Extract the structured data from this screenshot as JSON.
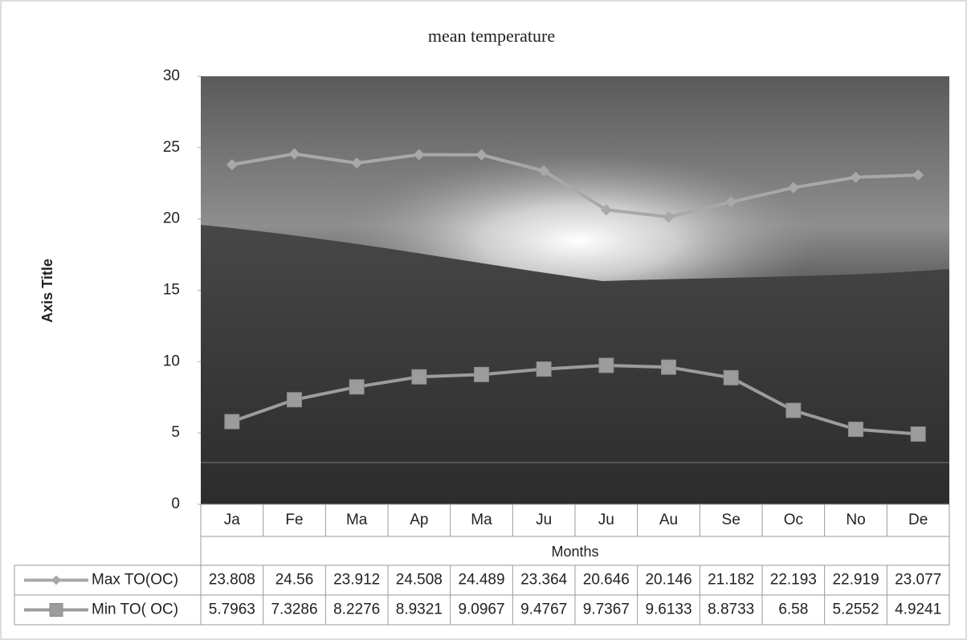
{
  "chart_data": {
    "type": "line",
    "title": "mean temperature",
    "y_label": "Axis Title",
    "x_label": "Months",
    "categories": [
      "Ja",
      "Fe",
      "Ma",
      "Ap",
      "Ma",
      "Ju",
      "Ju",
      "Au",
      "Se",
      "Oc",
      "No",
      "De"
    ],
    "series": [
      {
        "name": "Max TO(OC)",
        "color": "#a8a8a8",
        "marker": "diamond",
        "values": [
          23.808,
          24.56,
          23.912,
          24.508,
          24.489,
          23.364,
          20.646,
          20.146,
          21.182,
          22.193,
          22.919,
          23.077
        ]
      },
      {
        "name": "Min TO( OC)",
        "color": "#9c9c9c",
        "marker": "square",
        "values": [
          5.7963,
          7.3286,
          8.2276,
          8.9321,
          9.0967,
          9.4767,
          9.7367,
          9.6133,
          8.8733,
          6.58,
          5.2552,
          4.9241
        ]
      }
    ],
    "ylim": [
      0,
      30
    ],
    "yticks": [
      0,
      5,
      10,
      15,
      20,
      25,
      30
    ],
    "grid": false
  }
}
